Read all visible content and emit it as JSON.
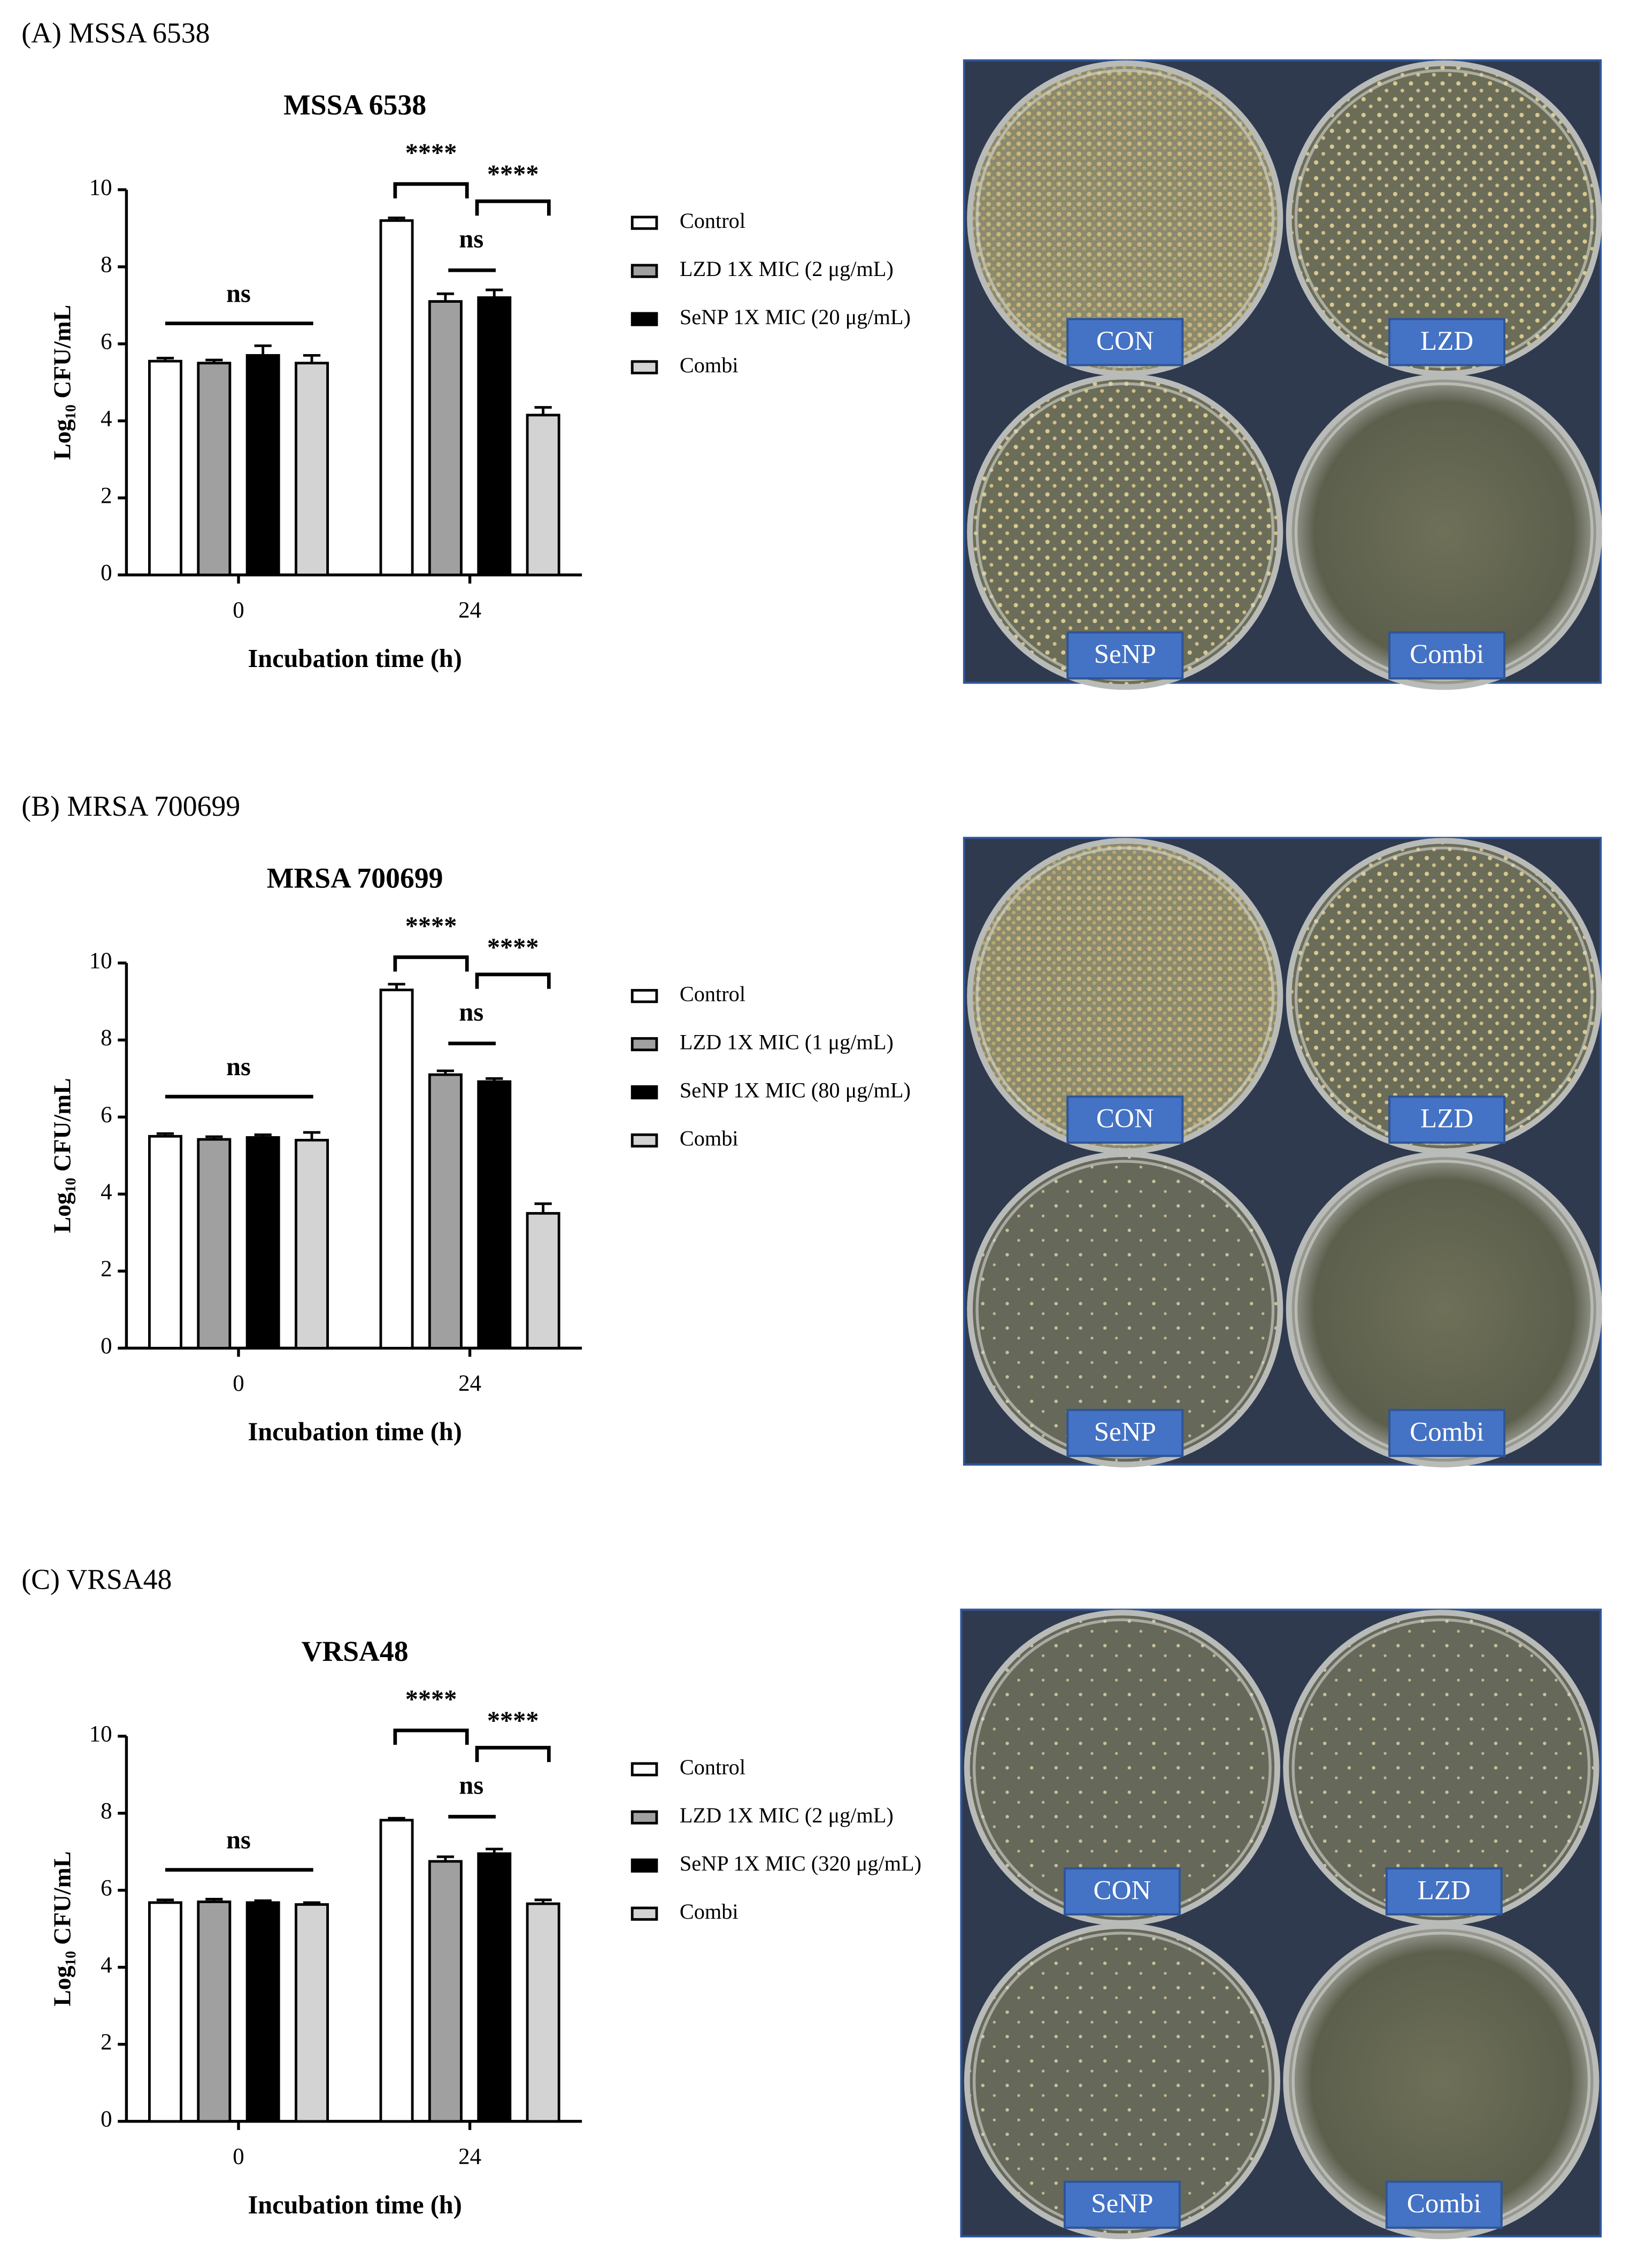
{
  "chart_data": [
    {
      "type": "bar",
      "panel_label": "(A) MSSA 6538",
      "title": "MSSA 6538",
      "x_label": "Incubation time (h)",
      "y_label": "Log₁₀ CFU/mL",
      "categories": [
        "0",
        "24"
      ],
      "ylim": [
        0,
        10
      ],
      "yticks": [
        0,
        2,
        4,
        6,
        8,
        10
      ],
      "series": [
        {
          "name": "Control",
          "color": "#ffffff",
          "values": [
            5.55,
            9.2
          ],
          "errors": [
            0.08,
            0.07
          ]
        },
        {
          "name": "LZD 1X MIC (2 μg/mL)",
          "color": "#a0a0a0",
          "values": [
            5.5,
            7.1
          ],
          "errors": [
            0.08,
            0.2
          ]
        },
        {
          "name": "SeNP 1X MIC (20 μg/mL)",
          "color": "#000000",
          "values": [
            5.7,
            7.2
          ],
          "errors": [
            0.25,
            0.2
          ]
        },
        {
          "name": "Combi",
          "color": "#d3d3d3",
          "values": [
            5.5,
            4.15
          ],
          "errors": [
            0.2,
            0.2
          ]
        }
      ],
      "annotations": [
        "ns",
        "****",
        "ns",
        "****"
      ],
      "plate_labels": [
        "CON",
        "LZD",
        "SeNP",
        "Combi"
      ]
    },
    {
      "type": "bar",
      "panel_label": "(B) MRSA 700699",
      "title": "MRSA 700699",
      "x_label": "Incubation time (h)",
      "y_label": "Log₁₀ CFU/mL",
      "categories": [
        "0",
        "24"
      ],
      "ylim": [
        0,
        10
      ],
      "yticks": [
        0,
        2,
        4,
        6,
        8,
        10
      ],
      "series": [
        {
          "name": "Control",
          "color": "#ffffff",
          "values": [
            5.5,
            9.3
          ],
          "errors": [
            0.07,
            0.15
          ]
        },
        {
          "name": "LZD 1X MIC (1 μg/mL)",
          "color": "#a0a0a0",
          "values": [
            5.42,
            7.1
          ],
          "errors": [
            0.07,
            0.1
          ]
        },
        {
          "name": "SeNP 1X MIC (80 μg/mL)",
          "color": "#000000",
          "values": [
            5.47,
            6.92
          ],
          "errors": [
            0.07,
            0.08
          ]
        },
        {
          "name": "Combi",
          "color": "#d3d3d3",
          "values": [
            5.4,
            3.5
          ],
          "errors": [
            0.2,
            0.25
          ]
        }
      ],
      "annotations": [
        "ns",
        "****",
        "ns",
        "****"
      ],
      "plate_labels": [
        "CON",
        "LZD",
        "SeNP",
        "Combi"
      ]
    },
    {
      "type": "bar",
      "panel_label": "(C) VRSA48",
      "title": "VRSA48",
      "x_label": "Incubation time (h)",
      "y_label": "Log₁₀ CFU/mL",
      "categories": [
        "0",
        "24"
      ],
      "ylim": [
        0,
        10
      ],
      "yticks": [
        0,
        2,
        4,
        6,
        8,
        10
      ],
      "series": [
        {
          "name": "Control",
          "color": "#ffffff",
          "values": [
            5.68,
            7.82
          ],
          "errors": [
            0.07,
            0.05
          ]
        },
        {
          "name": "LZD 1X MIC (2 μg/mL)",
          "color": "#a0a0a0",
          "values": [
            5.7,
            6.75
          ],
          "errors": [
            0.07,
            0.12
          ]
        },
        {
          "name": "SeNP 1X MIC (320 μg/mL)",
          "color": "#000000",
          "values": [
            5.68,
            6.95
          ],
          "errors": [
            0.05,
            0.12
          ]
        },
        {
          "name": "Combi",
          "color": "#d3d3d3",
          "values": [
            5.63,
            5.65
          ],
          "errors": [
            0.05,
            0.1
          ]
        }
      ],
      "annotations": [
        "ns",
        "****",
        "ns",
        "****"
      ],
      "plate_labels": [
        "CON",
        "LZD",
        "SeNP",
        "Combi"
      ]
    }
  ]
}
